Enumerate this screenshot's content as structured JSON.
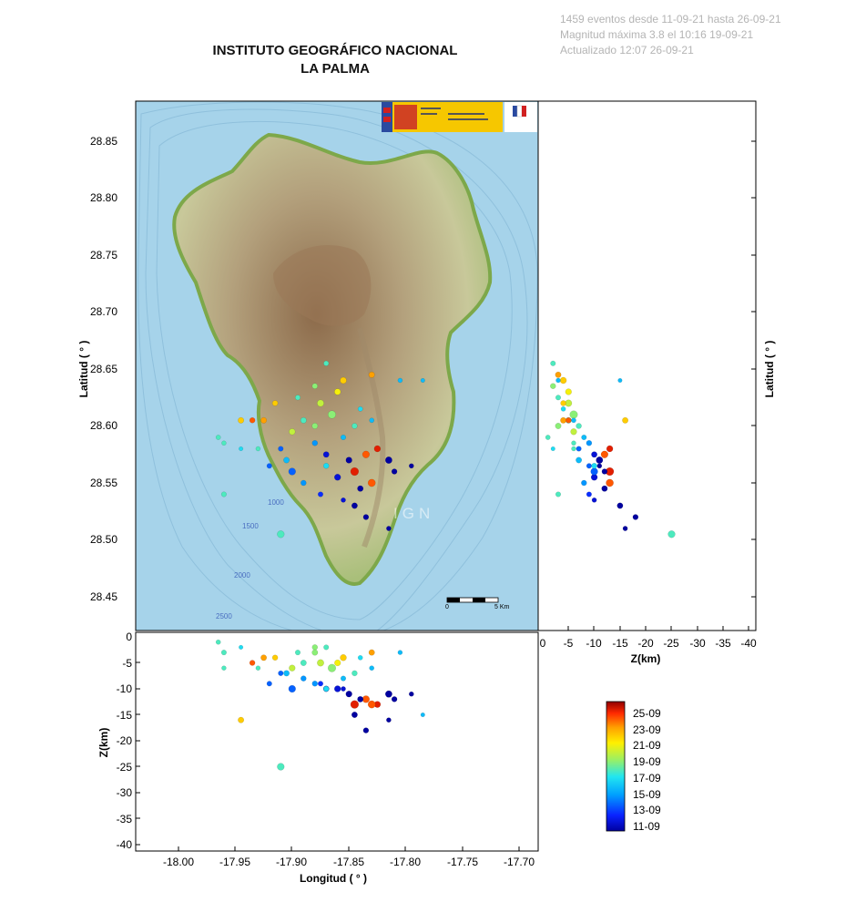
{
  "header": {
    "title_line1": "INSTITUTO GEOGRÁFICO NACIONAL",
    "title_line2": "LA PALMA"
  },
  "info": {
    "events": "1459 eventos desde 11-09-21 hasta 26-09-21",
    "max_mag": "Magnitud máxima 3.8 el 10:16 19-09-21",
    "updated": "Actualizado   12:07  26-09-21"
  },
  "map": {
    "watermark": "IGN",
    "contours": [
      "1000",
      "1500",
      "2000",
      "2500"
    ],
    "scale_start": "0",
    "scale_end": "5 Km"
  },
  "chart_data": [
    {
      "type": "scatter",
      "panel": "map",
      "ylabel": "Latitud ( ° )",
      "xlim": [
        -18.04,
        -17.69
      ],
      "ylim": [
        28.42,
        28.885
      ],
      "yticks": [
        "28.85",
        "28.80",
        "28.75",
        "28.70",
        "28.65",
        "28.60",
        "28.55",
        "28.50",
        "28.45"
      ],
      "note": "epicentres plotted from events_sample (lon, lat)"
    },
    {
      "type": "scatter",
      "panel": "depth-vs-latitude",
      "xlabel": "Z(km)",
      "ylabel": "Latitud ( ° )",
      "xlim": [
        0,
        -41
      ],
      "xticks": [
        "0",
        "-5",
        "-10",
        "-15",
        "-20",
        "-25",
        "-30",
        "-35",
        "-40"
      ]
    },
    {
      "type": "scatter",
      "panel": "depth-vs-longitude",
      "xlabel": "Longitud ( ° )",
      "ylabel": "Z(km)",
      "ylim": [
        0,
        -41
      ],
      "xticks": [
        "-18.00",
        "-17.95",
        "-17.90",
        "-17.85",
        "-17.80",
        "-17.75",
        "-17.70"
      ],
      "yticks": [
        "0",
        "-5",
        "-10",
        "-15",
        "-20",
        "-25",
        "-30",
        "-35",
        "-40"
      ]
    }
  ],
  "events_sample": [
    {
      "lon": -17.87,
      "lat": 28.655,
      "z": -2,
      "day": 18,
      "m": 2.4
    },
    {
      "lon": -17.83,
      "lat": 28.645,
      "z": -3,
      "day": 23,
      "m": 2.6
    },
    {
      "lon": -17.855,
      "lat": 28.64,
      "z": -4,
      "day": 22,
      "m": 2.8
    },
    {
      "lon": -17.805,
      "lat": 28.64,
      "z": -3,
      "day": 16,
      "m": 2.2
    },
    {
      "lon": -17.88,
      "lat": 28.635,
      "z": -2,
      "day": 19,
      "m": 2.5
    },
    {
      "lon": -17.895,
      "lat": 28.625,
      "z": -3,
      "day": 18,
      "m": 2.4
    },
    {
      "lon": -17.875,
      "lat": 28.62,
      "z": -5,
      "day": 20,
      "m": 2.9
    },
    {
      "lon": -17.915,
      "lat": 28.62,
      "z": -4,
      "day": 22,
      "m": 2.5
    },
    {
      "lon": -17.865,
      "lat": 28.61,
      "z": -6,
      "day": 19,
      "m": 3.2
    },
    {
      "lon": -17.89,
      "lat": 28.605,
      "z": -5,
      "day": 18,
      "m": 2.6
    },
    {
      "lon": -17.84,
      "lat": 28.615,
      "z": -4,
      "day": 17,
      "m": 2.3
    },
    {
      "lon": -17.845,
      "lat": 28.6,
      "z": -7,
      "day": 18,
      "m": 2.5
    },
    {
      "lon": -17.9,
      "lat": 28.595,
      "z": -6,
      "day": 20,
      "m": 2.7
    },
    {
      "lon": -17.855,
      "lat": 28.59,
      "z": -8,
      "day": 16,
      "m": 2.4
    },
    {
      "lon": -17.925,
      "lat": 28.605,
      "z": -4,
      "day": 23,
      "m": 2.6
    },
    {
      "lon": -17.935,
      "lat": 28.605,
      "z": -5,
      "day": 24,
      "m": 2.5
    },
    {
      "lon": -17.88,
      "lat": 28.585,
      "z": -9,
      "day": 15,
      "m": 2.5
    },
    {
      "lon": -17.91,
      "lat": 28.58,
      "z": -7,
      "day": 14,
      "m": 2.4
    },
    {
      "lon": -17.87,
      "lat": 28.575,
      "z": -10,
      "day": 12,
      "m": 2.6
    },
    {
      "lon": -17.85,
      "lat": 28.57,
      "z": -11,
      "day": 11,
      "m": 2.7
    },
    {
      "lon": -17.835,
      "lat": 28.575,
      "z": -12,
      "day": 24,
      "m": 3.0
    },
    {
      "lon": -17.825,
      "lat": 28.58,
      "z": -13,
      "day": 25,
      "m": 2.8
    },
    {
      "lon": -17.845,
      "lat": 28.56,
      "z": -13,
      "day": 25,
      "m": 3.3
    },
    {
      "lon": -17.815,
      "lat": 28.57,
      "z": -11,
      "day": 11,
      "m": 2.9
    },
    {
      "lon": -17.86,
      "lat": 28.555,
      "z": -10,
      "day": 12,
      "m": 2.8
    },
    {
      "lon": -17.84,
      "lat": 28.545,
      "z": -12,
      "day": 11,
      "m": 2.6
    },
    {
      "lon": -17.83,
      "lat": 28.55,
      "z": -13,
      "day": 24,
      "m": 3.1
    },
    {
      "lon": -17.81,
      "lat": 28.56,
      "z": -12,
      "day": 11,
      "m": 2.5
    },
    {
      "lon": -17.795,
      "lat": 28.565,
      "z": -11,
      "day": 11,
      "m": 2.3
    },
    {
      "lon": -17.9,
      "lat": 28.56,
      "z": -10,
      "day": 14,
      "m": 3.0
    },
    {
      "lon": -17.92,
      "lat": 28.565,
      "z": -9,
      "day": 14,
      "m": 2.4
    },
    {
      "lon": -17.89,
      "lat": 28.55,
      "z": -8,
      "day": 15,
      "m": 2.5
    },
    {
      "lon": -17.875,
      "lat": 28.54,
      "z": -9,
      "day": 13,
      "m": 2.4
    },
    {
      "lon": -17.855,
      "lat": 28.535,
      "z": -10,
      "day": 12,
      "m": 2.3
    },
    {
      "lon": -17.845,
      "lat": 28.53,
      "z": -15,
      "day": 11,
      "m": 2.6
    },
    {
      "lon": -17.835,
      "lat": 28.52,
      "z": -18,
      "day": 11,
      "m": 2.5
    },
    {
      "lon": -17.815,
      "lat": 28.51,
      "z": -16,
      "day": 11,
      "m": 2.3
    },
    {
      "lon": -17.96,
      "lat": 28.585,
      "z": -6,
      "day": 18,
      "m": 2.2
    },
    {
      "lon": -17.945,
      "lat": 28.58,
      "z": -2,
      "day": 17,
      "m": 2.1
    },
    {
      "lon": -17.965,
      "lat": 28.59,
      "z": -1,
      "day": 18,
      "m": 2.3
    },
    {
      "lon": -17.945,
      "lat": 28.605,
      "z": -16,
      "day": 22,
      "m": 2.6
    },
    {
      "lon": -17.93,
      "lat": 28.58,
      "z": -6,
      "day": 18,
      "m": 2.2
    },
    {
      "lon": -17.96,
      "lat": 28.54,
      "z": -3,
      "day": 18,
      "m": 2.4
    },
    {
      "lon": -17.91,
      "lat": 28.505,
      "z": -25,
      "day": 18,
      "m": 3.0
    },
    {
      "lon": -17.785,
      "lat": 28.64,
      "z": -15,
      "day": 16,
      "m": 2.1
    },
    {
      "lon": -17.88,
      "lat": 28.6,
      "z": -3,
      "day": 19,
      "m": 2.6
    },
    {
      "lon": -17.86,
      "lat": 28.63,
      "z": -5,
      "day": 21,
      "m": 2.7
    },
    {
      "lon": -17.83,
      "lat": 28.605,
      "z": -6,
      "day": 16,
      "m": 2.3
    },
    {
      "lon": -17.905,
      "lat": 28.57,
      "z": -7,
      "day": 16,
      "m": 2.6
    },
    {
      "lon": -17.87,
      "lat": 28.565,
      "z": -10,
      "day": 17,
      "m": 2.5
    }
  ],
  "colorbar": {
    "labels": [
      "25-09",
      "23-09",
      "21-09",
      "19-09",
      "17-09",
      "15-09",
      "13-09",
      "11-09"
    ]
  }
}
